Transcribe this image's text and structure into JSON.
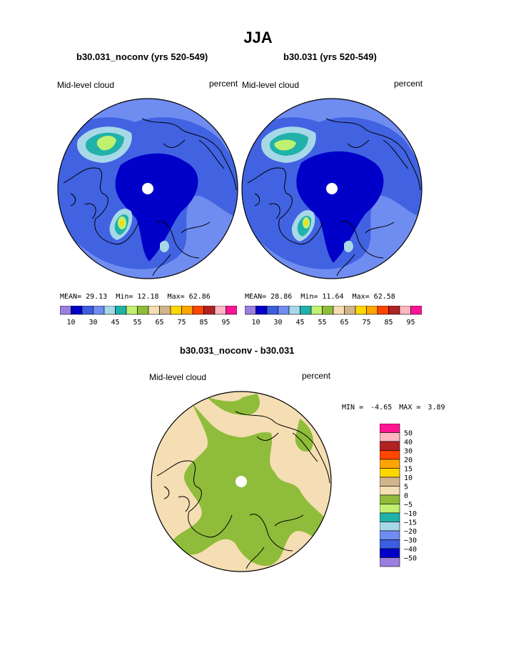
{
  "header": {
    "season": "JJA",
    "left_title": "b30.031_noconv (yrs 520-549)",
    "right_title": "b30.031 (yrs 520-549)",
    "diff_title": "b30.031_noconv - b30.031"
  },
  "panels": {
    "left": {
      "field_label": "Mid-level cloud",
      "units": "percent",
      "stats": {
        "mean_label": "MEAN=",
        "mean": "29.13",
        "min_label": "Min=",
        "min": "12.18",
        "max_label": "Max=",
        "max": "62.86"
      }
    },
    "right": {
      "field_label": "Mid-level cloud",
      "units": "percent",
      "stats": {
        "mean_label": "MEAN=",
        "mean": "28.86",
        "min_label": "Min=",
        "min": "11.64",
        "max_label": "Max=",
        "max": "62.58"
      }
    },
    "diff": {
      "field_label": "Mid-level cloud",
      "units": "percent",
      "stats": {
        "min_label": "MIN =",
        "min": "-4.65",
        "max_label": "MAX =",
        "max": "3.89"
      }
    }
  },
  "colorbar_abs": {
    "ticks": [
      "10",
      "30",
      "45",
      "55",
      "65",
      "75",
      "85",
      "95"
    ],
    "colors": [
      "#9a7fe0",
      "#0000c8",
      "#3c5ee0",
      "#6f8cf0",
      "#a7d8e8",
      "#20b2aa",
      "#c0f070",
      "#8fbc3a",
      "#f5deb3",
      "#d2b48c",
      "#ffd700",
      "#ffa500",
      "#ff4500",
      "#b22222",
      "#ffb6c1",
      "#ff1493"
    ]
  },
  "colorbar_diff": {
    "labels": [
      "50",
      "40",
      "30",
      "20",
      "15",
      "10",
      "5",
      "0",
      "−5",
      "−10",
      "−15",
      "−20",
      "−30",
      "−40",
      "−50"
    ],
    "colors": [
      "#ff1493",
      "#ffb6c1",
      "#b22222",
      "#ff4500",
      "#ffa500",
      "#ffd700",
      "#d2b48c",
      "#f5deb3",
      "#8fbc3a",
      "#c0f070",
      "#20b2aa",
      "#a7d8e8",
      "#6f8cf0",
      "#3c5ee0",
      "#0000c8",
      "#9a7fe0"
    ]
  },
  "map_colors": {
    "base": "#6f8cf0",
    "mid": "#3c5ee0",
    "deep": "#0000c8",
    "light": "#a7d8e8",
    "teal": "#20b2aa",
    "lime": "#c0f070",
    "yellow": "#ffd700",
    "diff_base": "#f5deb3",
    "diff_neg": "#8fbc3a"
  }
}
